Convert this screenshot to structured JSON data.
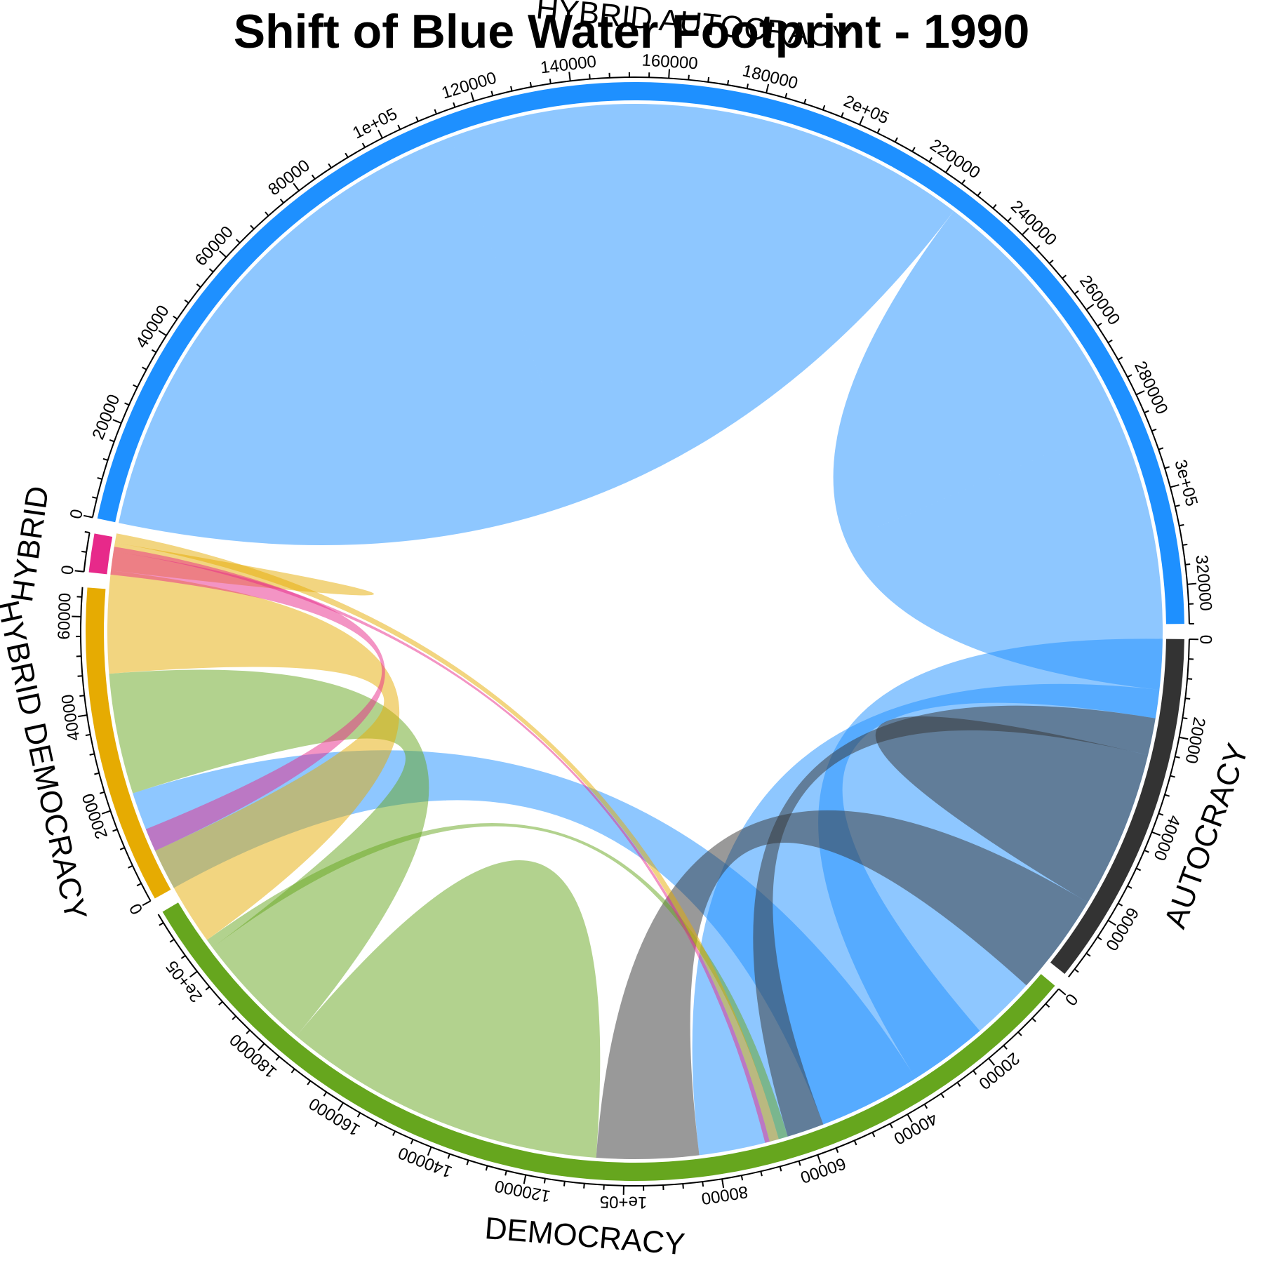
{
  "chart_data": {
    "type": "chord",
    "title": "Shift of Blue Water Footprint - 1990",
    "sectors": [
      {
        "name": "AUTOCRACY",
        "color": "#333333",
        "total": 74000,
        "ticks": [
          0,
          20000,
          40000,
          60000
        ]
      },
      {
        "name": "DEMOCRACY",
        "color": "#66A61E",
        "total": 214000,
        "ticks": [
          0,
          20000,
          40000,
          60000,
          80000,
          "1e+05",
          120000,
          140000,
          160000,
          180000,
          "2e+05"
        ]
      },
      {
        "name": "HYBRID DEMOCRACY",
        "color": "#E6AB02",
        "total": 66000,
        "ticks": [
          0,
          20000,
          40000,
          60000
        ]
      },
      {
        "name": "HYBRID",
        "color": "#E7298A",
        "total": 8000,
        "ticks": [
          0
        ]
      },
      {
        "name": "HYBRID AUTOCRACY",
        "color": "#1E90FF",
        "total": 328000,
        "ticks": [
          0,
          20000,
          40000,
          60000,
          80000,
          "1e+05",
          120000,
          140000,
          160000,
          180000,
          "2e+05",
          220000,
          240000,
          260000,
          280000,
          "3e+05",
          320000
        ]
      }
    ],
    "flows": [
      {
        "from": "HYBRID AUTOCRACY",
        "to": "HYBRID AUTOCRACY",
        "value": 113000
      },
      {
        "from": "HYBRID AUTOCRACY",
        "to": "HYBRID AUTOCRACY",
        "value": 58000
      },
      {
        "from": "HYBRID AUTOCRACY",
        "to": "DEMOCRACY",
        "value": 84000
      },
      {
        "from": "HYBRID AUTOCRACY",
        "to": "AUTOCRACY",
        "value": 17000
      },
      {
        "from": "HYBRID AUTOCRACY",
        "to": "HYBRID DEMOCRACY",
        "value": 22000
      },
      {
        "from": "AUTOCRACY",
        "to": "HYBRID AUTOCRACY",
        "value": 8000
      },
      {
        "from": "AUTOCRACY",
        "to": "AUTOCRACY",
        "value": 17000
      },
      {
        "from": "AUTOCRACY",
        "to": "DEMOCRACY",
        "value": 22000
      },
      {
        "from": "DEMOCRACY",
        "to": "DEMOCRACY",
        "value": 35000
      },
      {
        "from": "DEMOCRACY",
        "to": "HYBRID DEMOCRACY",
        "value": 26000
      },
      {
        "from": "DEMOCRACY",
        "to": "HYBRID AUTOCRACY",
        "value": 2000
      },
      {
        "from": "HYBRID DEMOCRACY",
        "to": "DEMOCRACY",
        "value": 22000
      },
      {
        "from": "HYBRID DEMOCRACY",
        "to": "HYBRID DEMOCRACY",
        "value": 3000
      },
      {
        "from": "HYBRID DEMOCRACY",
        "to": "HYBRID AUTOCRACY",
        "value": 2000
      },
      {
        "from": "HYBRID",
        "to": "DEMOCRACY",
        "value": 5000
      },
      {
        "from": "HYBRID",
        "to": "HYBRID AUTOCRACY",
        "value": 1000
      }
    ]
  }
}
